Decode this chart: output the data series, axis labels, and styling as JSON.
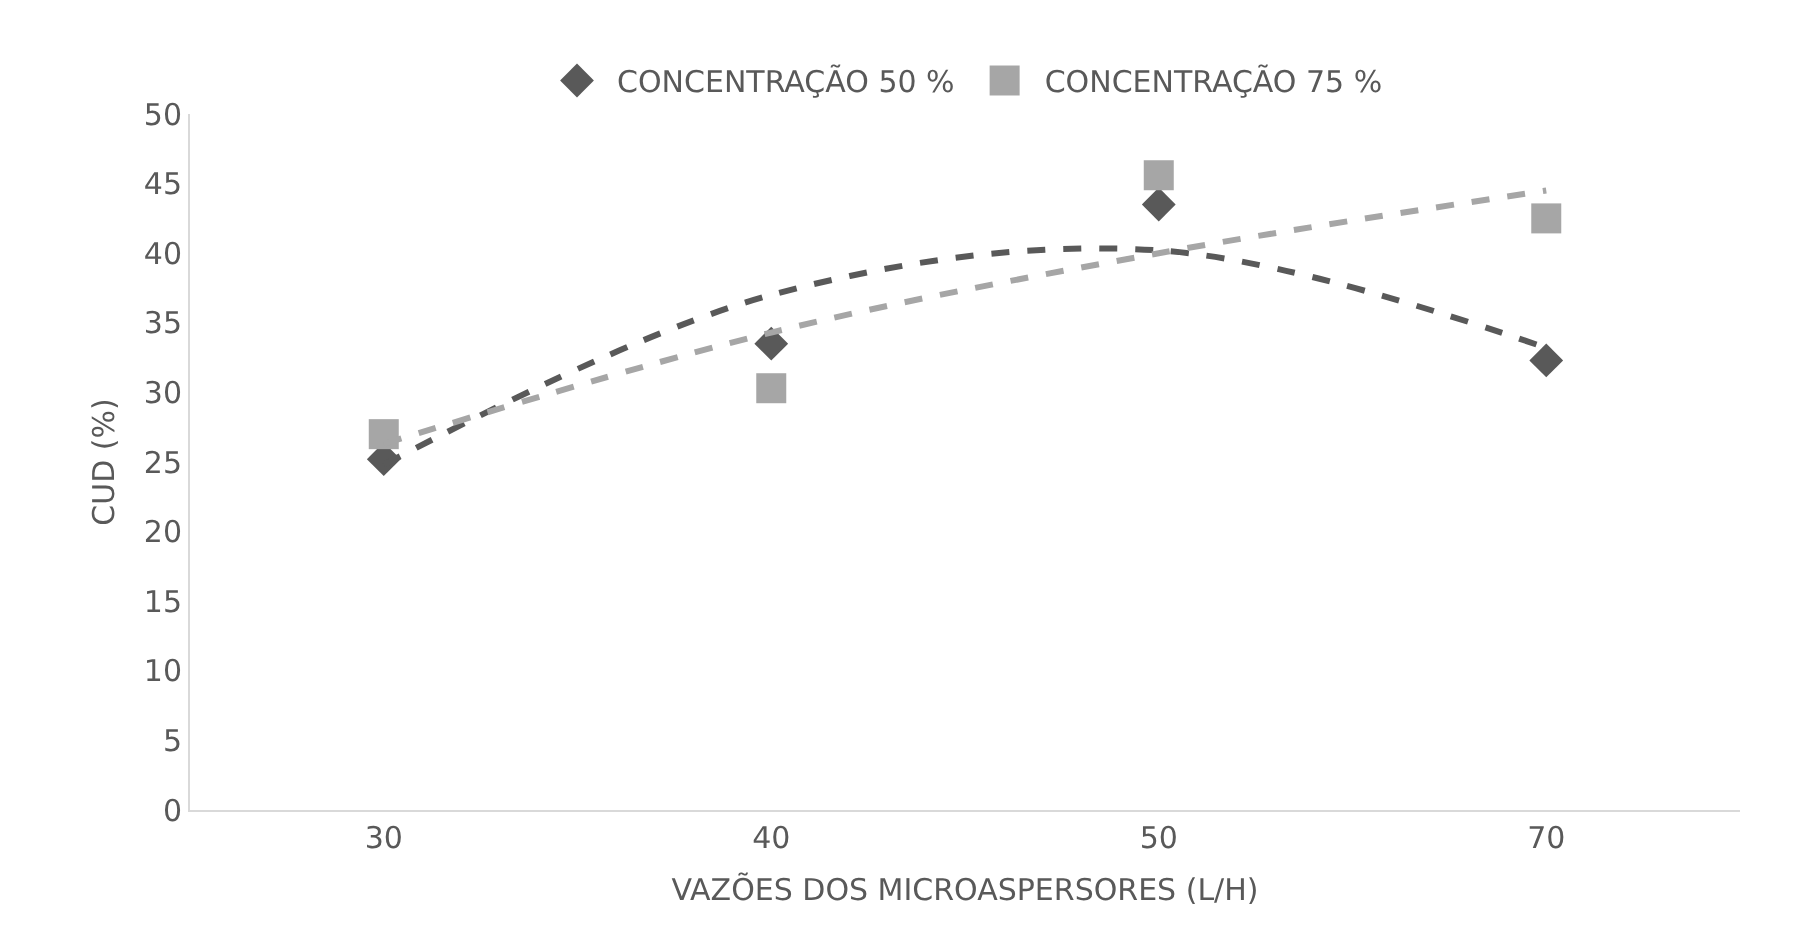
{
  "chart_data": {
    "type": "scatter",
    "xlabel": "VAZÕES DOS MICROASPERSORES (L/H)",
    "ylabel": "CUD (%)",
    "categories": [
      "30",
      "40",
      "50",
      "70"
    ],
    "ylim": [
      0,
      50
    ],
    "yticks": [
      0,
      5,
      10,
      15,
      20,
      25,
      30,
      35,
      40,
      45,
      50
    ],
    "grid": false,
    "legend": "top",
    "series": [
      {
        "name": "CONCENTRAÇÃO 50 %",
        "color": "#595959",
        "marker": "diamond",
        "values": [
          25.2,
          33.5,
          43.5,
          32.3
        ]
      },
      {
        "name": "CONCENTRAÇÃO 75 %",
        "color": "#a6a6a6",
        "marker": "square",
        "values": [
          27,
          30.3,
          45.6,
          42.5
        ]
      },
      {
        "type": "line",
        "color": "#595959",
        "line_style": "dashed",
        "values": [
          24.8,
          37,
          40.2,
          33.2
        ]
      },
      {
        "type": "line",
        "color": "#a6a6a6",
        "line_style": "dashed",
        "values": [
          26.3,
          34.3,
          40,
          44.5
        ]
      }
    ]
  }
}
